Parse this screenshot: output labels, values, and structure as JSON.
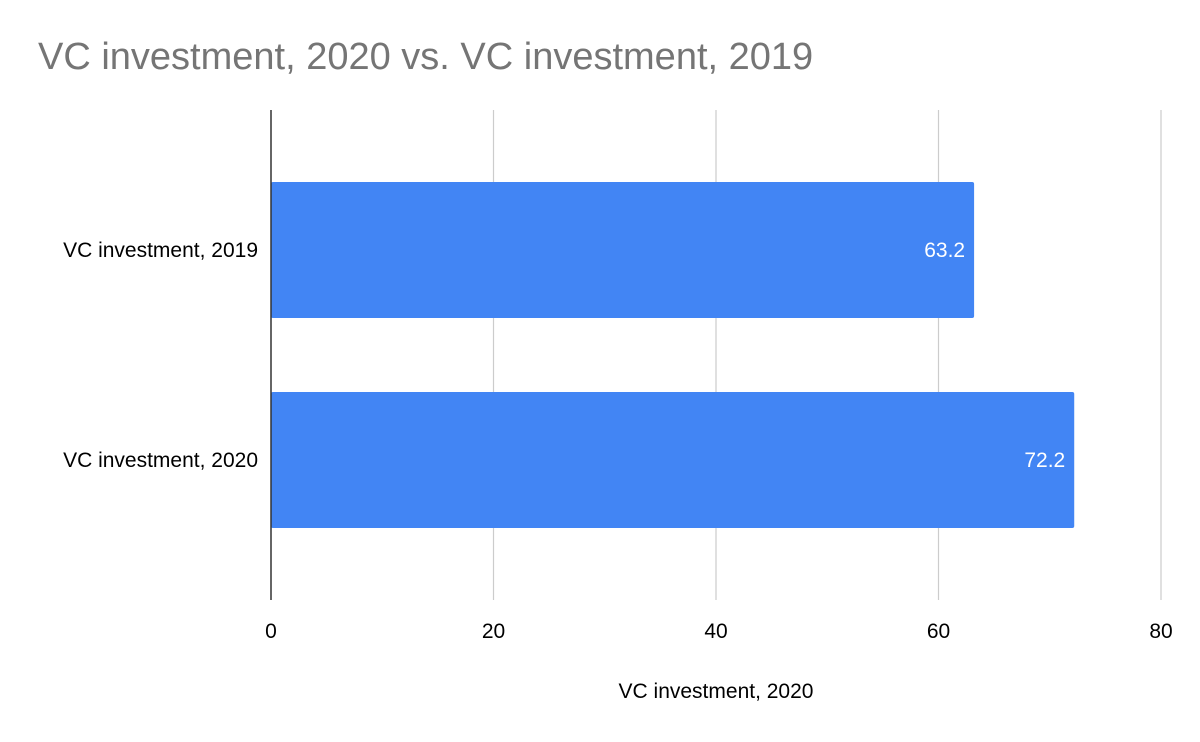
{
  "chart_data": {
    "type": "bar",
    "orientation": "horizontal",
    "title": "VC investment, 2020 vs. VC investment, 2019",
    "xlabel": "VC investment, 2020",
    "ylabel": "",
    "categories": [
      "VC investment, 2019",
      "VC investment, 2020"
    ],
    "values": [
      63.2,
      72.2
    ],
    "data_labels": [
      "63.2",
      "72.2"
    ],
    "xlim": [
      0,
      80
    ],
    "x_ticks": [
      "0",
      "20",
      "40",
      "60",
      "80"
    ],
    "grid": true,
    "legend": "none",
    "colors": {
      "bar": "#4285f4",
      "title": "#757575",
      "grid": "#cccccc",
      "axis": "#333333",
      "text": "#000000",
      "data_label": "#ffffff"
    }
  }
}
